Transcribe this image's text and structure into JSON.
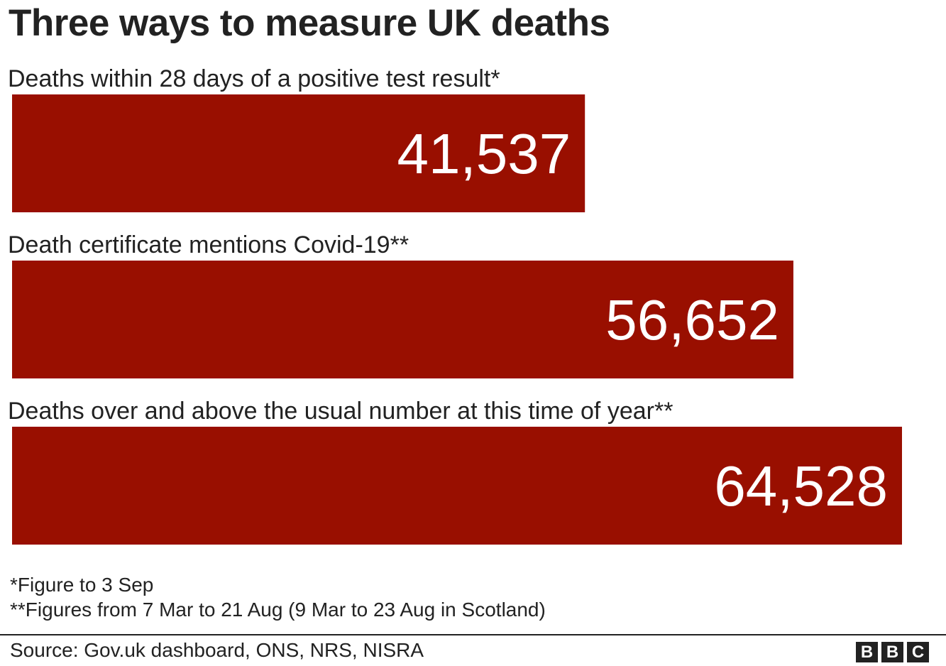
{
  "chart_data": {
    "type": "bar",
    "orientation": "horizontal",
    "title": "Three ways to measure UK deaths",
    "categories": [
      "Deaths within 28 days of a positive test result*",
      "Death certificate mentions Covid-19**",
      "Deaths over and above the usual number at this time of year**"
    ],
    "values": [
      41537,
      56652,
      64528
    ],
    "value_labels": [
      "41,537",
      "56,652",
      "64,528"
    ],
    "bar_color": "#990f00",
    "label_color": "#ffffff",
    "xlim": [
      0,
      66000
    ],
    "grid": false
  },
  "footnotes": [
    "*Figure to 3 Sep",
    "**Figures from 7 Mar to 21 Aug (9 Mar to 23 Aug in Scotland)"
  ],
  "source": "Source: Gov.uk dashboard, ONS, NRS, NISRA",
  "logo": [
    "B",
    "B",
    "C"
  ]
}
